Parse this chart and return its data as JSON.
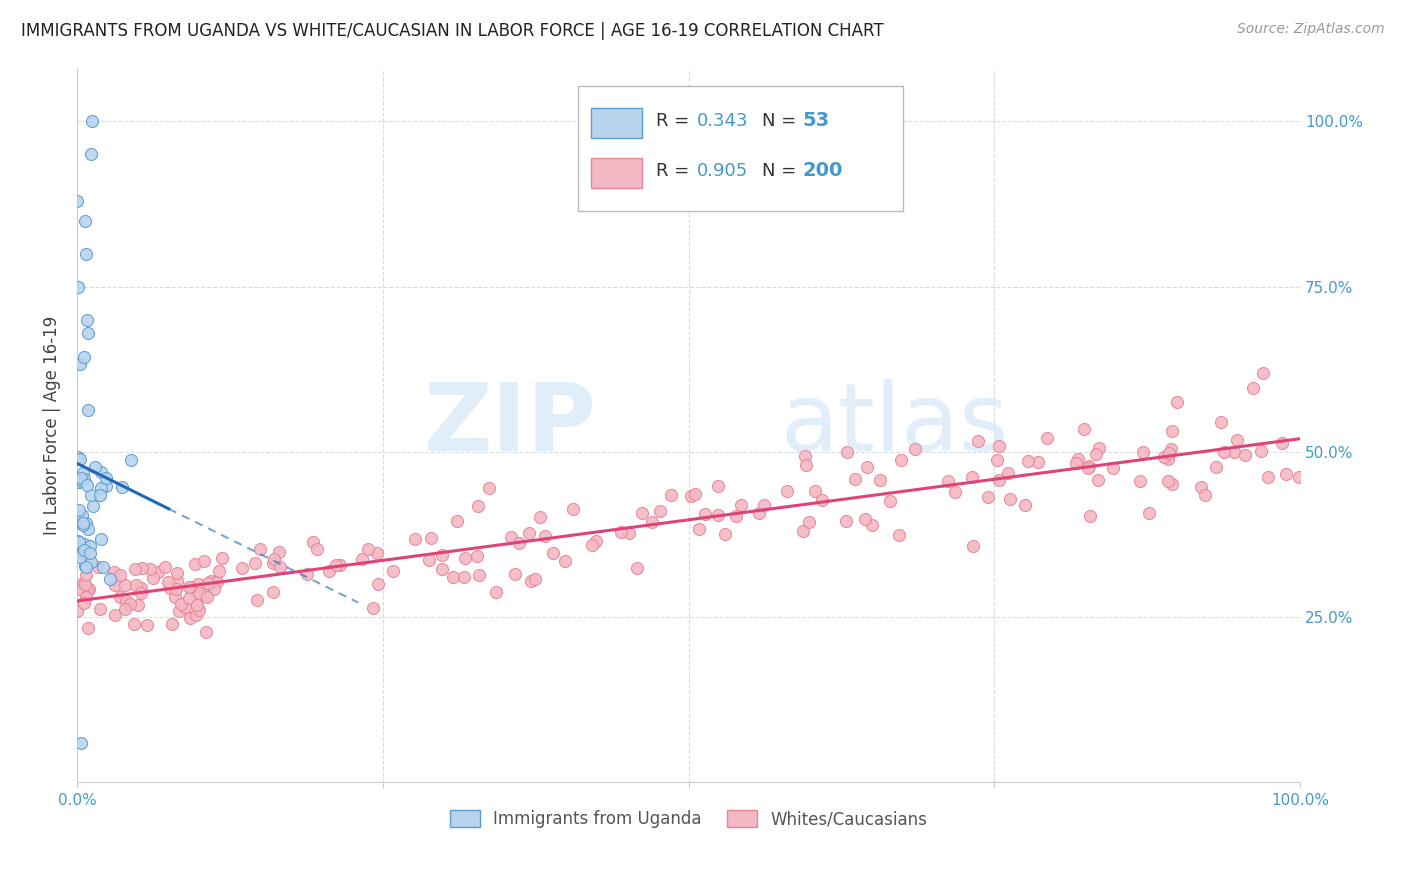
{
  "title": "IMMIGRANTS FROM UGANDA VS WHITE/CAUCASIAN IN LABOR FORCE | AGE 16-19 CORRELATION CHART",
  "source": "Source: ZipAtlas.com",
  "ylabel": "In Labor Force | Age 16-19",
  "ytick_labels": [
    "25.0%",
    "50.0%",
    "75.0%",
    "100.0%"
  ],
  "ytick_values": [
    0.25,
    0.5,
    0.75,
    1.0
  ],
  "xlim": [
    0.0,
    1.0
  ],
  "ylim": [
    0.0,
    1.08
  ],
  "uganda_edge_color": "#5b9bd5",
  "uganda_face_color": "#b8d4ed",
  "white_edge_color": "#e8849a",
  "white_face_color": "#f4b8c4",
  "trend_uganda_color": "#2266bb",
  "trend_white_color": "#dd4477",
  "R_uganda": 0.343,
  "N_uganda": 53,
  "R_white": 0.905,
  "N_white": 200,
  "watermark_zip": "ZIP",
  "watermark_atlas": "atlas",
  "legend_label_uganda": "Immigrants from Uganda",
  "legend_label_white": "Whites/Caucasians",
  "axis_label_color": "#4499cc",
  "grid_color": "#cccccc",
  "title_fontsize": 12,
  "source_fontsize": 10,
  "tick_fontsize": 11
}
